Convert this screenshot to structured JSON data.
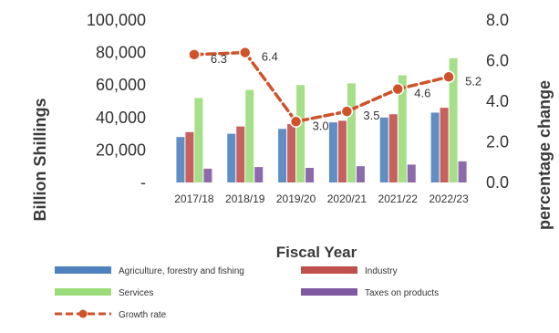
{
  "chart_data": {
    "type": "bar",
    "categories": [
      "2017/18",
      "2018/19",
      "2019/20",
      "2020/21",
      "2021/22",
      "2022/23"
    ],
    "series": [
      {
        "name": "Agriculture, forestry and fishing",
        "values": [
          28000,
          30000,
          33000,
          37000,
          40000,
          43000
        ],
        "color": "#4f81bd"
      },
      {
        "name": "Industry",
        "values": [
          31000,
          34500,
          36000,
          38000,
          42000,
          46000
        ],
        "color": "#c0504d"
      },
      {
        "name": "Services",
        "values": [
          52000,
          57000,
          60000,
          61000,
          66000,
          76500
        ],
        "color": "#9bdc7a"
      },
      {
        "name": "Taxes on products",
        "values": [
          8500,
          9500,
          9000,
          10000,
          11000,
          13000
        ],
        "color": "#7f5aa2"
      }
    ],
    "line_series": {
      "name": "Growth rate",
      "values": [
        6.3,
        6.4,
        3.0,
        3.5,
        4.6,
        5.2
      ],
      "labels": [
        "6.3",
        "6.4",
        "3.0",
        "3.5",
        "4.6",
        "5.2"
      ],
      "color": "#d0522a"
    },
    "xlabel": "Fiscal Year",
    "ylabel": "Billion Shillings",
    "y2label": "percentage change",
    "ylim": [
      0,
      100000
    ],
    "y2lim": [
      0,
      8
    ],
    "y_ticks": [
      "-",
      "20,000",
      "40,000",
      "60,000",
      "80,000",
      "100,000"
    ],
    "y2_ticks": [
      "0.0",
      "2.0",
      "4.0",
      "6.0",
      "8.0"
    ],
    "legend_position": "bottom",
    "grid": false
  }
}
